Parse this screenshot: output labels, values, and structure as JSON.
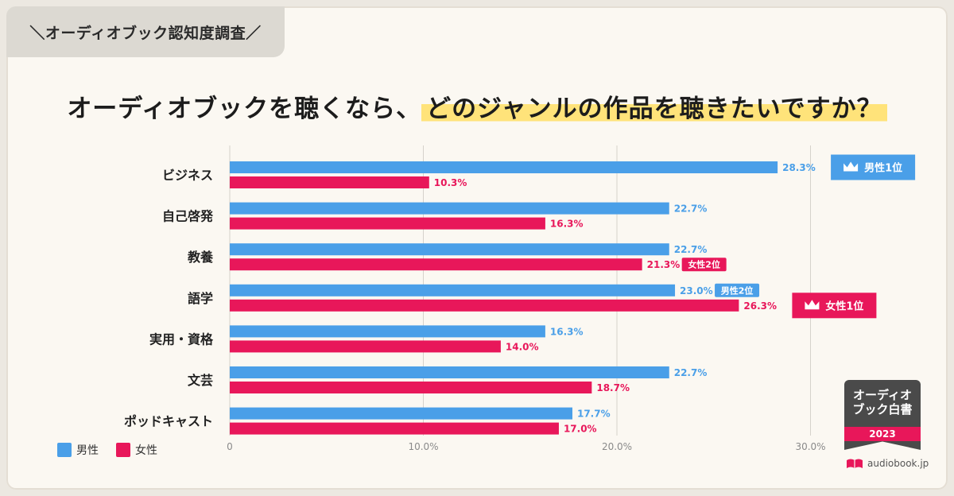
{
  "tag": "＼オーディオブック認知度調査／",
  "headline": {
    "part1": "オーディオブックを聴くなら、",
    "part2": "どのジャンルの作品を聴きたいですか？"
  },
  "colors": {
    "male": "#4a9fe8",
    "female": "#e8175a",
    "grid": "#d6d2cb"
  },
  "chart_data": {
    "type": "bar",
    "orientation": "horizontal",
    "categories": [
      "ビジネス",
      "自己啓発",
      "教養",
      "語学",
      "実用・資格",
      "文芸",
      "ポッドキャスト"
    ],
    "series": [
      {
        "name": "男性",
        "values": [
          28.3,
          22.7,
          22.7,
          23.0,
          16.3,
          22.7,
          17.7
        ]
      },
      {
        "name": "女性",
        "values": [
          10.3,
          16.3,
          21.3,
          26.3,
          14.0,
          18.7,
          17.0
        ]
      }
    ],
    "value_labels": {
      "男性": [
        "28.3%",
        "22.7%",
        "22.7%",
        "23.0%",
        "16.3%",
        "22.7%",
        "17.7%"
      ],
      "女性": [
        "10.3%",
        "16.3%",
        "21.3%",
        "26.3%",
        "14.0%",
        "18.7%",
        "17.0%"
      ]
    },
    "xlim": [
      0,
      30
    ],
    "xticks": [
      "0",
      "10.0%",
      "20.0%",
      "30.0%"
    ],
    "grid": true,
    "legend": "bottom-left",
    "annotations": [
      {
        "series": "男性",
        "category": "ビジネス",
        "text": "男性1位",
        "crown": true
      },
      {
        "series": "女性",
        "category": "語学",
        "text": "女性1位",
        "crown": true
      },
      {
        "series": "男性",
        "category": "語学",
        "text": "男性2位",
        "crown": false
      },
      {
        "series": "女性",
        "category": "教養",
        "text": "女性2位",
        "crown": false
      }
    ]
  },
  "legend": {
    "male": "男性",
    "female": "女性"
  },
  "logo": {
    "line1": "オーディオ",
    "line2": "ブック白書",
    "year": "2023"
  },
  "site": "audiobook.jp",
  "icons": {
    "rank_badge": "crown-icon",
    "site": "book-icon"
  }
}
